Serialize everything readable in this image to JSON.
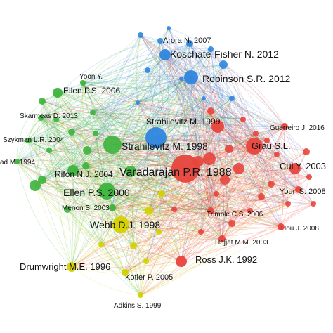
{
  "network": {
    "clusters": {
      "blue": "#2e86de",
      "green": "#3cb43c",
      "red": "#e8453c",
      "yellow": "#d4d000"
    },
    "nodes": [
      {
        "id": "arora",
        "label": "Arora N. 2007",
        "cluster": "blue",
        "size": "small"
      },
      {
        "id": "koschate",
        "label": "Koschate-Fisher N. 2012",
        "cluster": "blue",
        "size": "medium"
      },
      {
        "id": "robinson",
        "label": "Robinson S.R. 2012",
        "cluster": "blue",
        "size": "medium"
      },
      {
        "id": "strahilevitz1999",
        "label": "Strahilevitz M. 1999",
        "cluster": "red",
        "size": "medium"
      },
      {
        "id": "strahilevitz1998",
        "label": "Strahilevitz M. 1998",
        "cluster": "blue",
        "size": "large"
      },
      {
        "id": "varadarajan",
        "label": "Varadarajan P.R. 1988",
        "cluster": "red",
        "size": "xlarge"
      },
      {
        "id": "yoon",
        "label": "Yoon Y.",
        "cluster": "green",
        "size": "small"
      },
      {
        "id": "ellen2006",
        "label": "Ellen P.S. 2006",
        "cluster": "green",
        "size": "medium"
      },
      {
        "id": "skarmeas",
        "label": "Skarmeas D. 2013",
        "cluster": "green",
        "size": "small"
      },
      {
        "id": "szykman",
        "label": "Szykman L.R. 2004",
        "cluster": "green",
        "size": "small"
      },
      {
        "id": "ad1994",
        "label": "ad M. 1994",
        "cluster": "green",
        "size": "small"
      },
      {
        "id": "rifon",
        "label": "Rifon N.J. 2004",
        "cluster": "green",
        "size": "medium"
      },
      {
        "id": "ellen2000",
        "label": "Ellen P.S. 2000",
        "cluster": "green",
        "size": "large"
      },
      {
        "id": "menon",
        "label": "Menon S. 2003",
        "cluster": "green",
        "size": "small"
      },
      {
        "id": "webb",
        "label": "Webb D.J. 1998",
        "cluster": "yellow",
        "size": "large"
      },
      {
        "id": "drumwright",
        "label": "Drumwright M.E. 1996",
        "cluster": "yellow",
        "size": "medium"
      },
      {
        "id": "kotler",
        "label": "Kotler P. 2005",
        "cluster": "yellow",
        "size": "small"
      },
      {
        "id": "adkins",
        "label": "Adkins S. 1999",
        "cluster": "yellow",
        "size": "small"
      },
      {
        "id": "guerreiro",
        "label": "Guerreiro J. 2016",
        "cluster": "red",
        "size": "small"
      },
      {
        "id": "grau",
        "label": "Grau S.L.",
        "cluster": "red",
        "size": "large"
      },
      {
        "id": "cui",
        "label": "Cui Y. 2003",
        "cluster": "red",
        "size": "medium"
      },
      {
        "id": "youn",
        "label": "Youn S. 2008",
        "cluster": "red",
        "size": "small"
      },
      {
        "id": "trimble",
        "label": "Trimble C.S. 2006",
        "cluster": "red",
        "size": "small"
      },
      {
        "id": "hou",
        "label": "Hou J. 2008",
        "cluster": "red",
        "size": "small"
      },
      {
        "id": "hajjat",
        "label": "Hajjat M.M. 2003",
        "cluster": "red",
        "size": "small"
      },
      {
        "id": "ross",
        "label": "Ross J.K. 1992",
        "cluster": "red",
        "size": "medium"
      }
    ]
  }
}
